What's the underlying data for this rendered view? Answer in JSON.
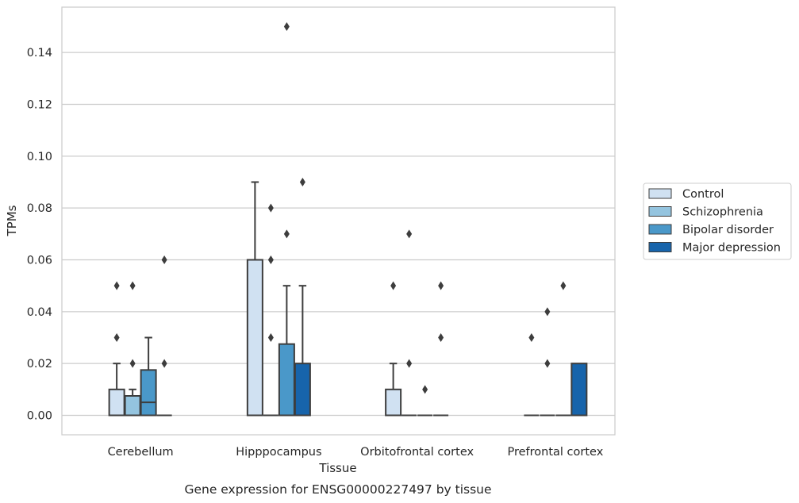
{
  "chart_data": {
    "type": "box",
    "caption": "Gene expression for ENSG00000227497 by tissue",
    "xlabel": "Tissue",
    "ylabel": "TPMs",
    "ylim": [
      -0.0075,
      0.1575
    ],
    "yticks": [
      0.0,
      0.02,
      0.04,
      0.06,
      0.08,
      0.1,
      0.12,
      0.14
    ],
    "ytick_labels": [
      "0.00",
      "0.02",
      "0.04",
      "0.06",
      "0.08",
      "0.10",
      "0.12",
      "0.14"
    ],
    "grid": "horizontal",
    "legend_position": "right",
    "categories": [
      "Cerebellum",
      "Hipppocampus",
      "Orbitofrontal cortex",
      "Prefrontal cortex"
    ],
    "series": [
      {
        "name": "Control",
        "color": "#d0e1f2",
        "boxes": [
          {
            "q1": 0.0,
            "median": 0.0,
            "q3": 0.01,
            "whisker_low": 0.0,
            "whisker_high": 0.02,
            "outliers": [
              0.03,
              0.05
            ]
          },
          {
            "q1": 0.0,
            "median": 0.0,
            "q3": 0.06,
            "whisker_low": 0.0,
            "whisker_high": 0.09,
            "outliers": []
          },
          {
            "q1": 0.0,
            "median": 0.0,
            "q3": 0.01,
            "whisker_low": 0.0,
            "whisker_high": 0.02,
            "outliers": [
              0.05
            ]
          },
          {
            "q1": 0.0,
            "median": 0.0,
            "q3": 0.0,
            "whisker_low": 0.0,
            "whisker_high": 0.0,
            "outliers": [
              0.03
            ]
          }
        ]
      },
      {
        "name": "Schizophrenia",
        "color": "#94c4df",
        "boxes": [
          {
            "q1": 0.0,
            "median": 0.0,
            "q3": 0.0075,
            "whisker_low": 0.0,
            "whisker_high": 0.01,
            "outliers": [
              0.02,
              0.05
            ]
          },
          {
            "q1": 0.0,
            "median": 0.0,
            "q3": 0.0,
            "whisker_low": 0.0,
            "whisker_high": 0.0,
            "outliers": [
              0.03,
              0.06,
              0.08
            ]
          },
          {
            "q1": 0.0,
            "median": 0.0,
            "q3": 0.0,
            "whisker_low": 0.0,
            "whisker_high": 0.0,
            "outliers": [
              0.02,
              0.07
            ]
          },
          {
            "q1": 0.0,
            "median": 0.0,
            "q3": 0.0,
            "whisker_low": 0.0,
            "whisker_high": 0.0,
            "outliers": [
              0.02,
              0.04
            ]
          }
        ]
      },
      {
        "name": "Bipolar disorder",
        "color": "#4a98c9",
        "boxes": [
          {
            "q1": 0.0,
            "median": 0.005,
            "q3": 0.0175,
            "whisker_low": 0.0,
            "whisker_high": 0.03,
            "outliers": []
          },
          {
            "q1": 0.0,
            "median": 0.0,
            "q3": 0.0275,
            "whisker_low": 0.0,
            "whisker_high": 0.05,
            "outliers": [
              0.07,
              0.15
            ]
          },
          {
            "q1": 0.0,
            "median": 0.0,
            "q3": 0.0,
            "whisker_low": 0.0,
            "whisker_high": 0.0,
            "outliers": [
              0.01
            ]
          },
          {
            "q1": 0.0,
            "median": 0.0,
            "q3": 0.0,
            "whisker_low": 0.0,
            "whisker_high": 0.0,
            "outliers": [
              0.05
            ]
          }
        ]
      },
      {
        "name": "Major depression",
        "color": "#1764ab",
        "boxes": [
          {
            "q1": 0.0,
            "median": 0.0,
            "q3": 0.0,
            "whisker_low": 0.0,
            "whisker_high": 0.0,
            "outliers": [
              0.02,
              0.06
            ]
          },
          {
            "q1": 0.0,
            "median": 0.0,
            "q3": 0.02,
            "whisker_low": 0.0,
            "whisker_high": 0.05,
            "outliers": [
              0.09
            ]
          },
          {
            "q1": 0.0,
            "median": 0.0,
            "q3": 0.0,
            "whisker_low": 0.0,
            "whisker_high": 0.0,
            "outliers": [
              0.03,
              0.05
            ]
          },
          {
            "q1": 0.0,
            "median": 0.0,
            "q3": 0.02,
            "whisker_low": 0.0,
            "whisker_high": 0.02,
            "outliers": []
          }
        ]
      }
    ]
  }
}
